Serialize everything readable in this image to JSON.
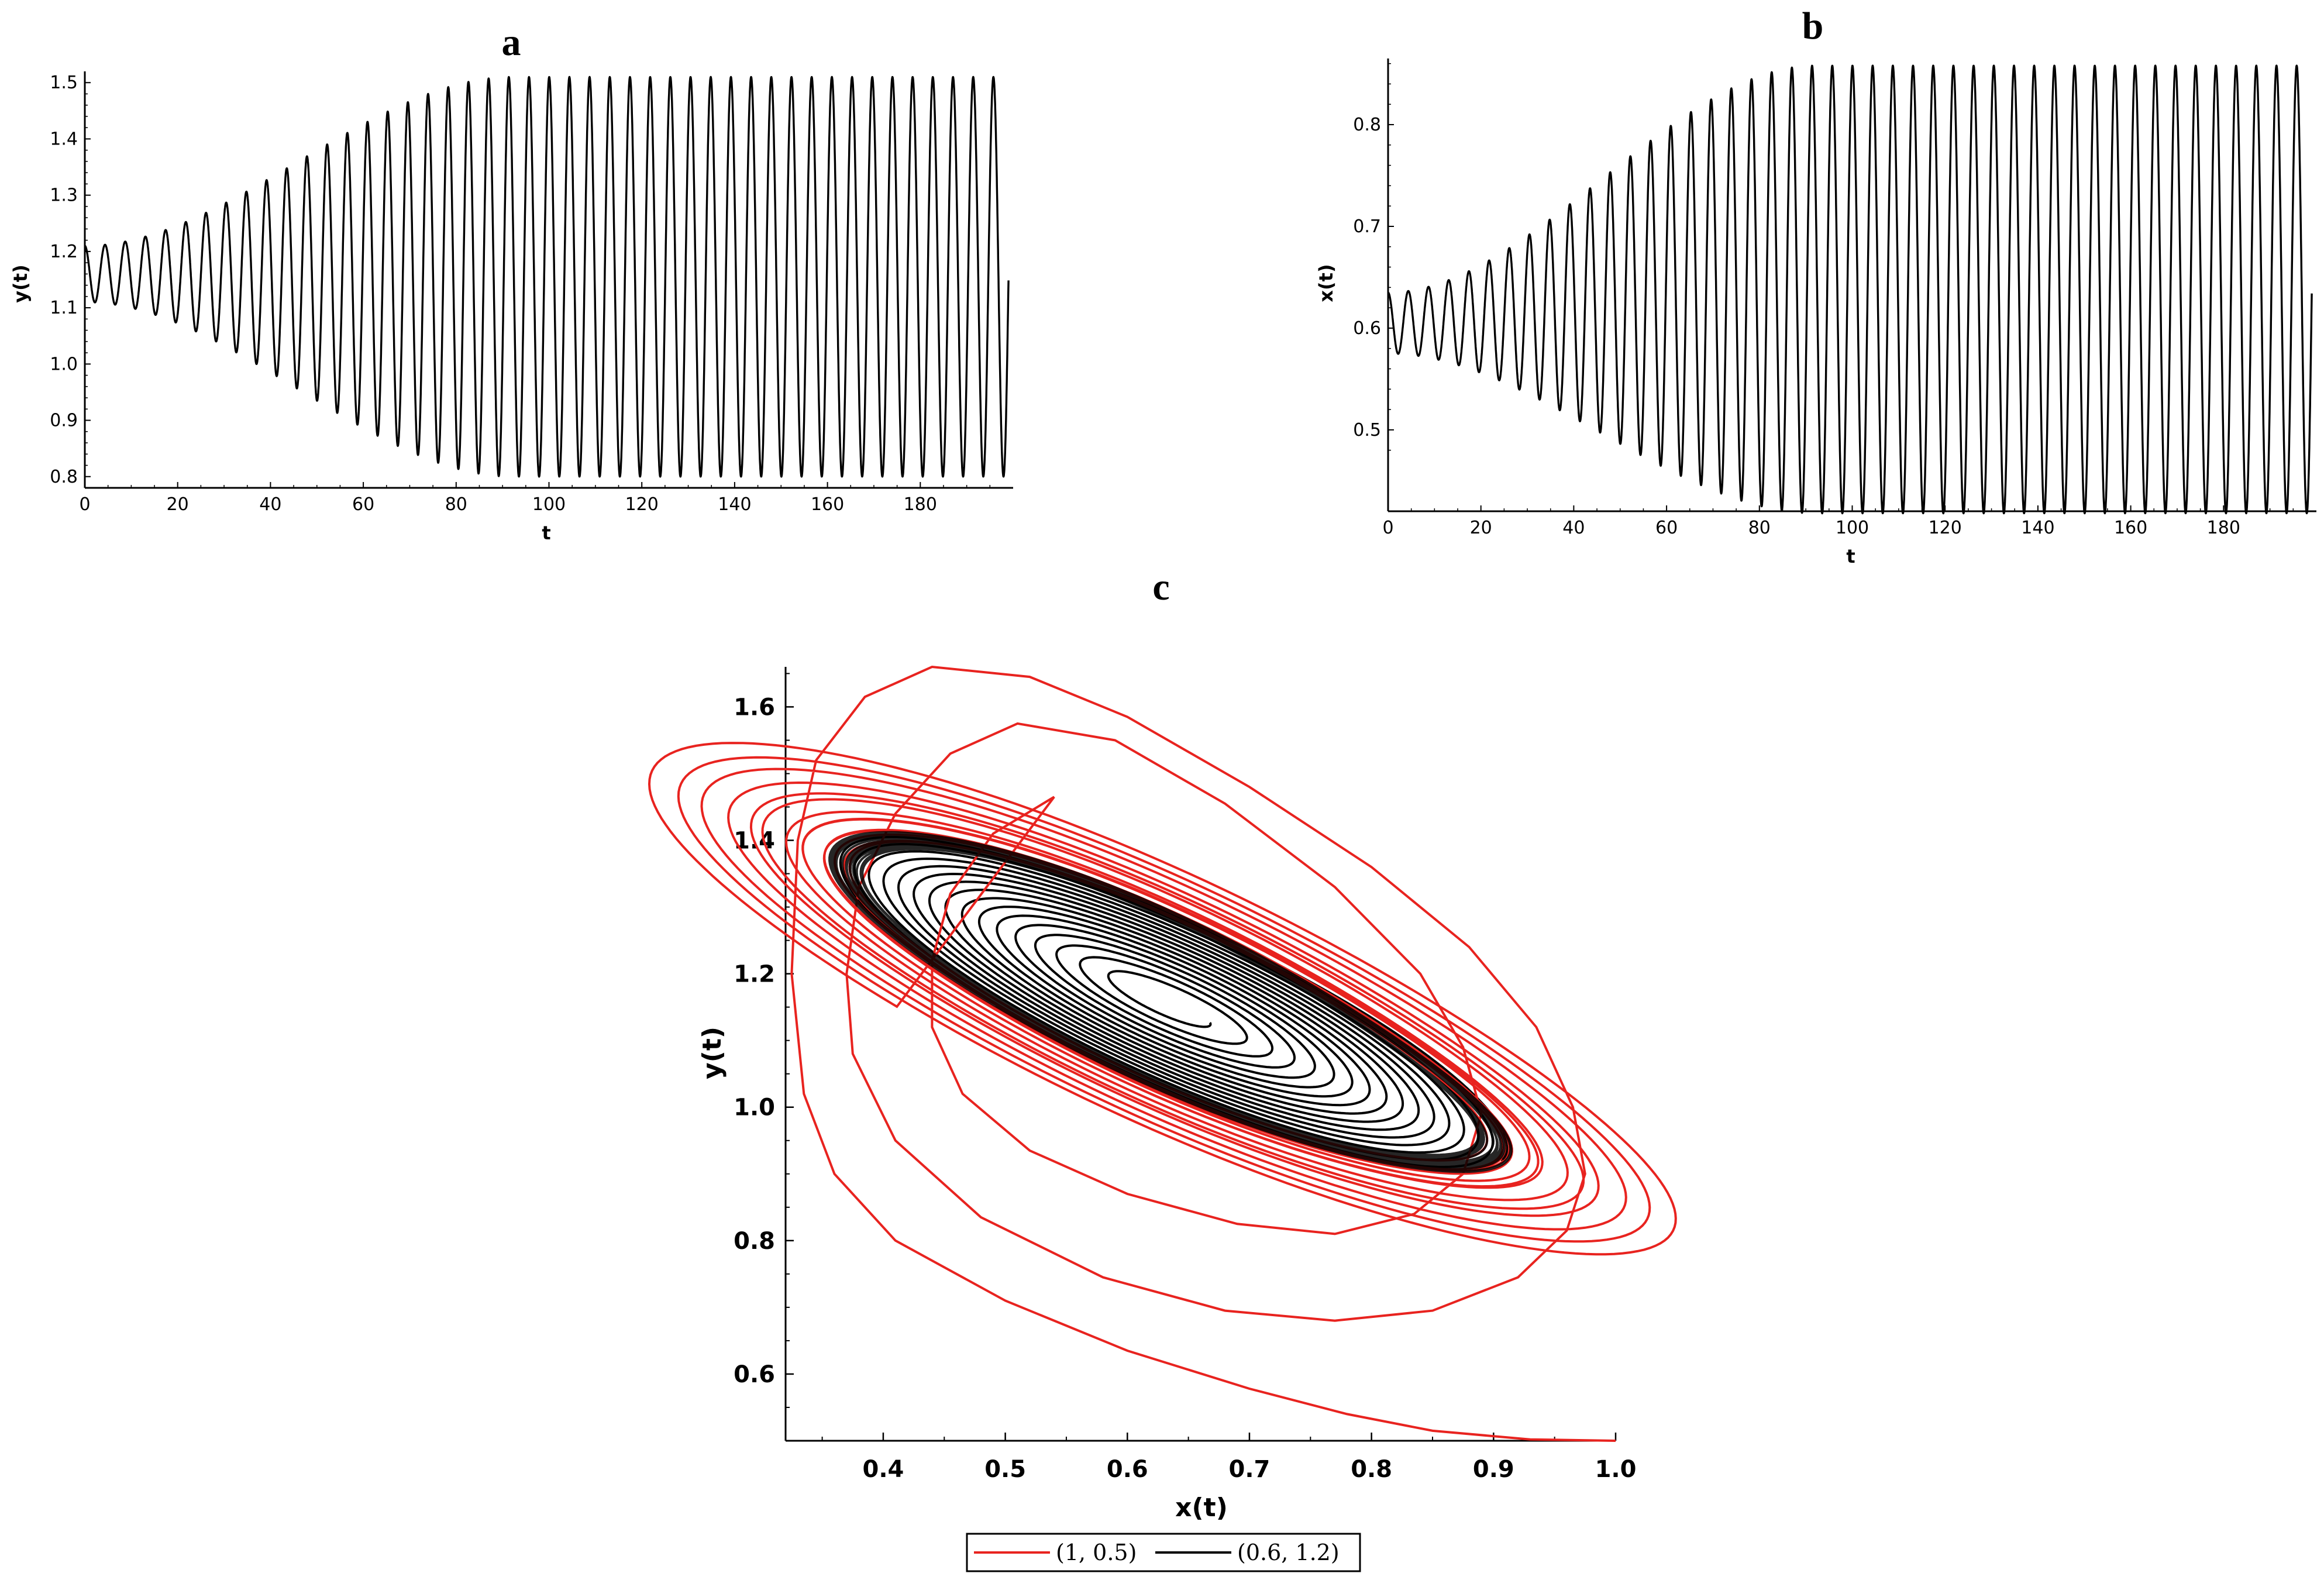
{
  "chart_data": [
    {
      "panel": "a",
      "type": "line",
      "title": "a",
      "xlabel": "t",
      "ylabel": "y(t)",
      "xlim": [
        0,
        200
      ],
      "ylim": [
        0.78,
        1.52
      ],
      "xticks": [
        0,
        20,
        40,
        60,
        80,
        100,
        120,
        140,
        160,
        180
      ],
      "yticks": [
        0.8,
        0.9,
        1.0,
        1.1,
        1.2,
        1.3,
        1.4,
        1.5
      ],
      "ytick_labels": [
        "0.8",
        "0.9",
        "1.0",
        "1.1",
        "1.2",
        "1.3",
        "1.4",
        "1.5"
      ],
      "color": "#000000",
      "series": [
        {
          "name": "y(t)",
          "period": 4.35,
          "center_start": 1.16,
          "amp_start": 0.05,
          "center_end": 1.155,
          "amp_end": 0.355,
          "ramp_end_t": 92,
          "t_end": 199
        }
      ]
    },
    {
      "panel": "b",
      "type": "line",
      "title": "b",
      "xlabel": "t",
      "ylabel": "x(t)",
      "xlim": [
        0,
        200
      ],
      "ylim": [
        0.42,
        0.865
      ],
      "xticks": [
        0,
        20,
        40,
        60,
        80,
        100,
        120,
        140,
        160,
        180
      ],
      "yticks": [
        0.5,
        0.6,
        0.7,
        0.8
      ],
      "ytick_labels": [
        "0.5",
        "0.6",
        "0.7",
        "0.8"
      ],
      "color": "#000000",
      "series": [
        {
          "name": "x(t)",
          "period": 4.35,
          "center_start": 0.605,
          "amp_start": 0.03,
          "center_end": 0.638,
          "amp_end": 0.22,
          "ramp_end_t": 92,
          "t_end": 199
        }
      ]
    },
    {
      "panel": "c",
      "type": "line",
      "title": "c",
      "xlabel": "x(t)",
      "ylabel": "y(t)",
      "xlim": [
        0.32,
        1.0
      ],
      "ylim": [
        0.5,
        1.66
      ],
      "xticks": [
        0.4,
        0.5,
        0.6,
        0.7,
        0.8,
        0.9,
        1.0
      ],
      "xtick_labels": [
        "0.4",
        "0.5",
        "0.6",
        "0.7",
        "0.8",
        "0.9",
        "1.0"
      ],
      "yticks": [
        0.6,
        0.8,
        1.0,
        1.2,
        1.4,
        1.6
      ],
      "ytick_labels": [
        "0.6",
        "0.8",
        "1.0",
        "1.2",
        "1.4",
        "1.6"
      ],
      "limit_cycle": {
        "center": [
          0.635,
          1.155
        ],
        "semi_major": 0.36,
        "semi_minor": 0.105,
        "angle_deg": -41
      },
      "series": [
        {
          "name": "(1, 0.5)",
          "color": "#e8231f",
          "initial_condition": [
            1.0,
            0.5
          ],
          "outer_path": [
            [
              1.0,
              0.5
            ],
            [
              0.93,
              0.502
            ],
            [
              0.85,
              0.515
            ],
            [
              0.78,
              0.54
            ],
            [
              0.7,
              0.578
            ],
            [
              0.6,
              0.635
            ],
            [
              0.5,
              0.71
            ],
            [
              0.41,
              0.8
            ],
            [
              0.36,
              0.9
            ],
            [
              0.335,
              1.02
            ],
            [
              0.325,
              1.2
            ],
            [
              0.33,
              1.4
            ],
            [
              0.345,
              1.52
            ],
            [
              0.385,
              1.615
            ],
            [
              0.44,
              1.66
            ],
            [
              0.52,
              1.645
            ],
            [
              0.6,
              1.585
            ],
            [
              0.7,
              1.48
            ],
            [
              0.8,
              1.36
            ],
            [
              0.88,
              1.24
            ],
            [
              0.935,
              1.12
            ],
            [
              0.965,
              1.0
            ],
            [
              0.975,
              0.9
            ],
            [
              0.96,
              0.815
            ],
            [
              0.92,
              0.745
            ],
            [
              0.85,
              0.695
            ],
            [
              0.77,
              0.68
            ],
            [
              0.68,
              0.695
            ],
            [
              0.58,
              0.745
            ],
            [
              0.48,
              0.835
            ],
            [
              0.41,
              0.95
            ],
            [
              0.375,
              1.08
            ],
            [
              0.37,
              1.2
            ],
            [
              0.38,
              1.33
            ],
            [
              0.41,
              1.44
            ],
            [
              0.455,
              1.53
            ],
            [
              0.51,
              1.575
            ],
            [
              0.59,
              1.55
            ],
            [
              0.68,
              1.455
            ],
            [
              0.77,
              1.33
            ],
            [
              0.84,
              1.2
            ],
            [
              0.875,
              1.09
            ],
            [
              0.89,
              0.99
            ],
            [
              0.875,
              0.9
            ],
            [
              0.835,
              0.84
            ],
            [
              0.77,
              0.81
            ],
            [
              0.69,
              0.825
            ],
            [
              0.6,
              0.87
            ],
            [
              0.52,
              0.935
            ],
            [
              0.465,
              1.02
            ],
            [
              0.44,
              1.12
            ],
            [
              0.44,
              1.22
            ],
            [
              0.455,
              1.32
            ],
            [
              0.49,
              1.41
            ],
            [
              0.54,
              1.465
            ]
          ],
          "spiral_from_amp": 1.25
        },
        {
          "name": "(0.6, 1.2)",
          "color": "#000000",
          "initial_condition": [
            0.6,
            1.2
          ],
          "spiral_from_amp": 0.12
        }
      ],
      "legend": {
        "position": "bottom-center",
        "entries": [
          "(1, 0.5)",
          "(0.6, 1.2)"
        ]
      }
    }
  ]
}
